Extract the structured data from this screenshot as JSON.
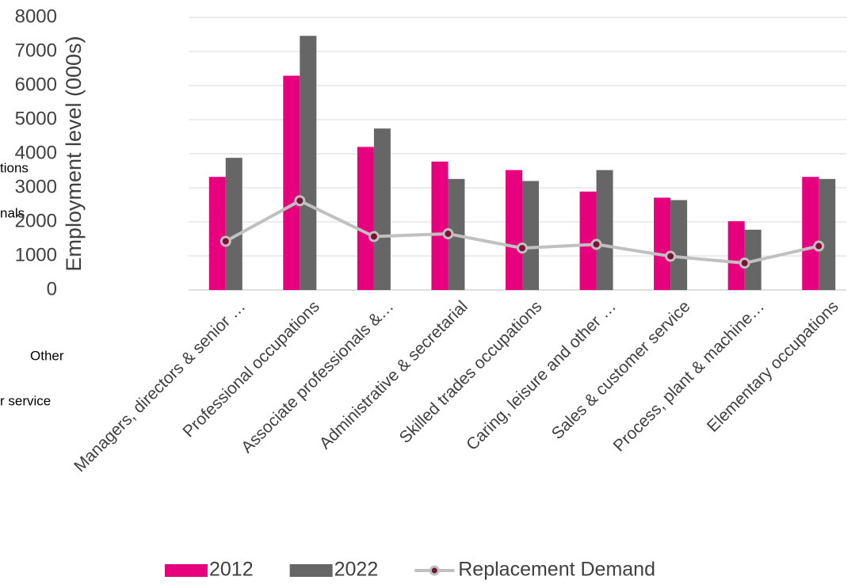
{
  "chart_data": {
    "type": "bar",
    "ylabel": "Employment level (000s)",
    "categories": [
      "Managers, directors & senior …",
      "Professional occupations",
      "Associate professionals &…",
      "Administrative & secretarial",
      "Skilled trades occupations",
      "Caring, leisure and other …",
      "Sales & customer service",
      "Process, plant & machine…",
      "Elementary occupations"
    ],
    "series": [
      {
        "name": "2012",
        "type": "bar",
        "color": "#e6007e",
        "values": [
          3320,
          6290,
          4200,
          3770,
          3520,
          2890,
          2710,
          2020,
          3320
        ]
      },
      {
        "name": "2022",
        "type": "bar",
        "color": "#666666",
        "values": [
          3880,
          7460,
          4740,
          3260,
          3200,
          3520,
          2640,
          1770,
          3260
        ]
      },
      {
        "name": "Replacement Demand",
        "type": "line",
        "color": "#c0c0c0",
        "marker_color": "#7b1237",
        "values": [
          1430,
          2620,
          1570,
          1650,
          1230,
          1340,
          990,
          790,
          1290
        ]
      }
    ],
    "ylim": [
      0,
      8000
    ],
    "yticks": [
      0,
      1000,
      2000,
      3000,
      4000,
      5000,
      6000,
      7000,
      8000
    ],
    "grid": true,
    "legend": "bottom",
    "annotations": [
      "tions",
      "nals",
      "Other",
      "r service"
    ]
  }
}
